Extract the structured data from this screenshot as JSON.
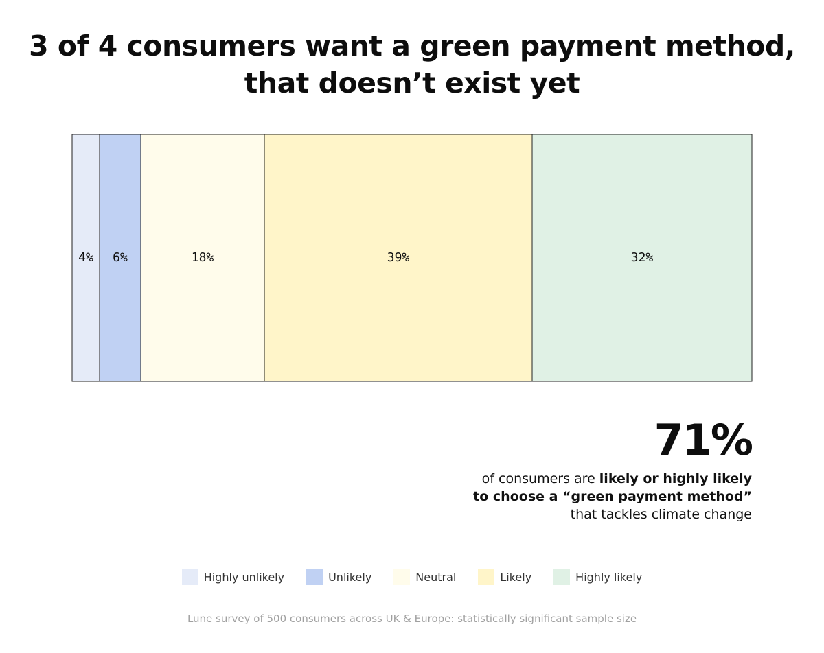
{
  "title": {
    "line1": "3 of 4 consumers want a green payment method,",
    "line2": "that doesn’t exist yet"
  },
  "chart_data": {
    "type": "bar",
    "orientation": "horizontal-stacked",
    "unit": "%",
    "categories": [
      "Highly unlikely",
      "Unlikely",
      "Neutral",
      "Likely",
      "Highly likely"
    ],
    "values": [
      4,
      6,
      18,
      39,
      32
    ],
    "labels": [
      "4%",
      "6%",
      "18%",
      "39%",
      "32%"
    ],
    "colors": [
      "#e5ebf8",
      "#c0d1f3",
      "#fffceb",
      "#fff5c9",
      "#e0f1e5"
    ],
    "legend_position": "bottom-center"
  },
  "callout": {
    "value": "71%",
    "text_prefix": "of consumers are ",
    "text_bold": "likely or highly likely to choose a “green payment method”",
    "text_suffix": " that tackles climate change"
  },
  "legend": [
    {
      "label": "Highly unlikely",
      "color": "#e5ebf8"
    },
    {
      "label": "Unlikely",
      "color": "#c0d1f3"
    },
    {
      "label": "Neutral",
      "color": "#fffceb"
    },
    {
      "label": "Likely",
      "color": "#fff5c9"
    },
    {
      "label": "Highly likely",
      "color": "#e0f1e5"
    }
  ],
  "footnote": "Lune survey of 500 consumers across UK & Europe: statistically significant sample size"
}
